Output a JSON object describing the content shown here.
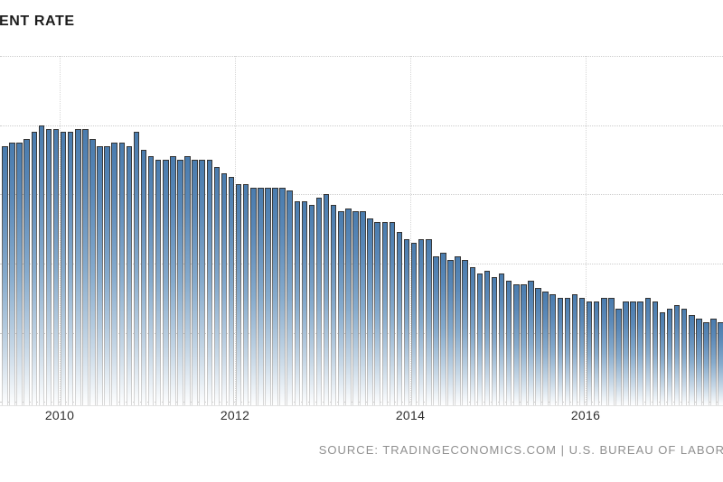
{
  "header": {
    "title": "ENT RATE"
  },
  "footer": {
    "source_label": "SOURCE: TRADINGECONOMICS.COM | U.S. BUREAU OF LABOR"
  },
  "colors": {
    "bar_fill_top": "#4a7cae",
    "bar_fill_bottom": "#ffffff",
    "bar_border_top": "#343434",
    "gridline": "#cdcdcd",
    "title_text": "#1c1c1c",
    "source_text": "#8f8f8f",
    "tick_text": "#2e2e2e"
  },
  "chart_data": {
    "type": "bar",
    "title": "ENT RATE",
    "frequency": "monthly",
    "x_start": "2009-05",
    "x_end": "2017-07",
    "values": [
      9.4,
      9.5,
      9.5,
      9.6,
      9.8,
      10.0,
      9.9,
      9.9,
      9.8,
      9.8,
      9.9,
      9.9,
      9.6,
      9.4,
      9.4,
      9.5,
      9.5,
      9.4,
      9.8,
      9.3,
      9.1,
      9.0,
      9.0,
      9.1,
      9.0,
      9.1,
      9.0,
      9.0,
      9.0,
      8.8,
      8.6,
      8.5,
      8.3,
      8.3,
      8.2,
      8.2,
      8.2,
      8.2,
      8.2,
      8.1,
      7.8,
      7.8,
      7.7,
      7.9,
      8.0,
      7.7,
      7.5,
      7.6,
      7.5,
      7.5,
      7.3,
      7.2,
      7.2,
      7.2,
      6.9,
      6.7,
      6.6,
      6.7,
      6.7,
      6.2,
      6.3,
      6.1,
      6.2,
      6.1,
      5.9,
      5.7,
      5.8,
      5.6,
      5.7,
      5.5,
      5.4,
      5.4,
      5.5,
      5.3,
      5.2,
      5.1,
      5.0,
      5.0,
      5.1,
      5.0,
      4.9,
      4.9,
      5.0,
      5.0,
      4.7,
      4.9,
      4.9,
      4.9,
      5.0,
      4.9,
      4.6,
      4.7,
      4.8,
      4.7,
      4.5,
      4.4,
      4.3,
      4.4,
      4.3
    ],
    "x_tick_labels": [
      "2010",
      "2012",
      "2014",
      "2016"
    ],
    "ylim": [
      1.9,
      12.0
    ],
    "gridline_values": [
      2,
      4,
      6,
      8,
      10,
      12
    ],
    "grid": "on",
    "legend": "none",
    "xlabel": "",
    "ylabel": ""
  }
}
